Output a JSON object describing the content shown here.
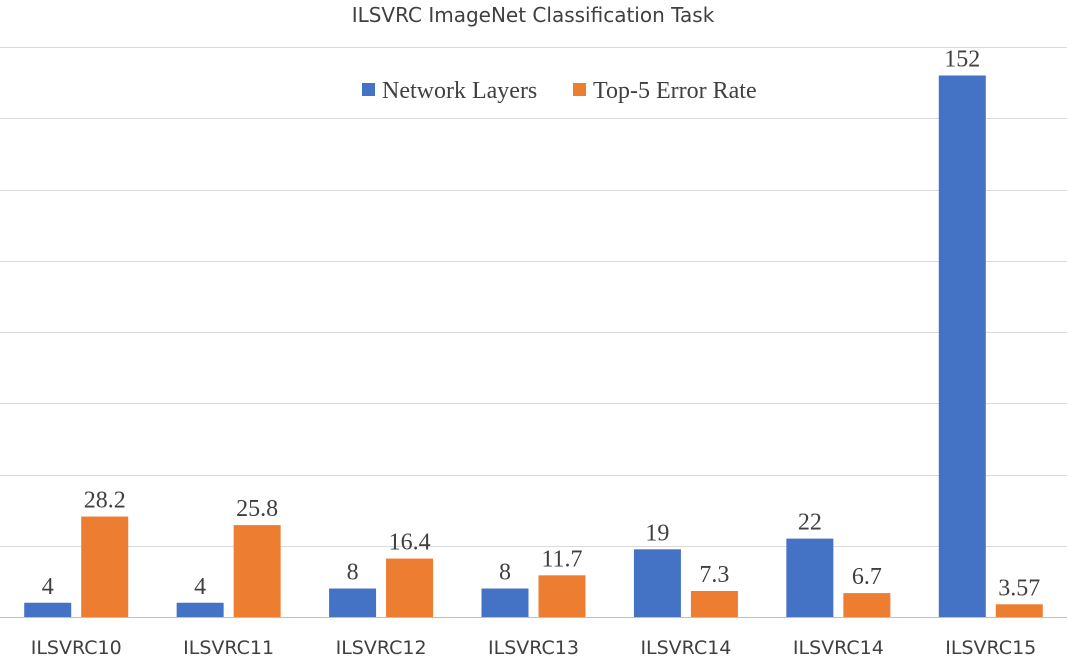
{
  "chart_data": {
    "type": "bar",
    "title": "ILSVRC ImageNet Classification Task",
    "categories": [
      "ILSVRC10",
      "ILSVRC11",
      "ILSVRC12",
      "ILSVRC13",
      "ILSVRC14",
      "ILSVRC14",
      "ILSVRC15"
    ],
    "series": [
      {
        "name": "Network Layers",
        "values": [
          4,
          4,
          8,
          8,
          19,
          22,
          152
        ],
        "labels": [
          "4",
          "4",
          "8",
          "8",
          "19",
          "22",
          "152"
        ],
        "color": "#4472C4"
      },
      {
        "name": "Top-5 Error Rate",
        "values": [
          28.2,
          25.8,
          16.4,
          11.7,
          7.3,
          6.7,
          3.57
        ],
        "labels": [
          "28.2",
          "25.8",
          "16.4",
          "11.7",
          "7.3",
          "6.7",
          "3.57"
        ],
        "color": "#ED7D31"
      }
    ],
    "ylim": [
      0,
      160
    ],
    "grid": true,
    "legend_position": "top-center",
    "xlabel": "",
    "ylabel": ""
  }
}
